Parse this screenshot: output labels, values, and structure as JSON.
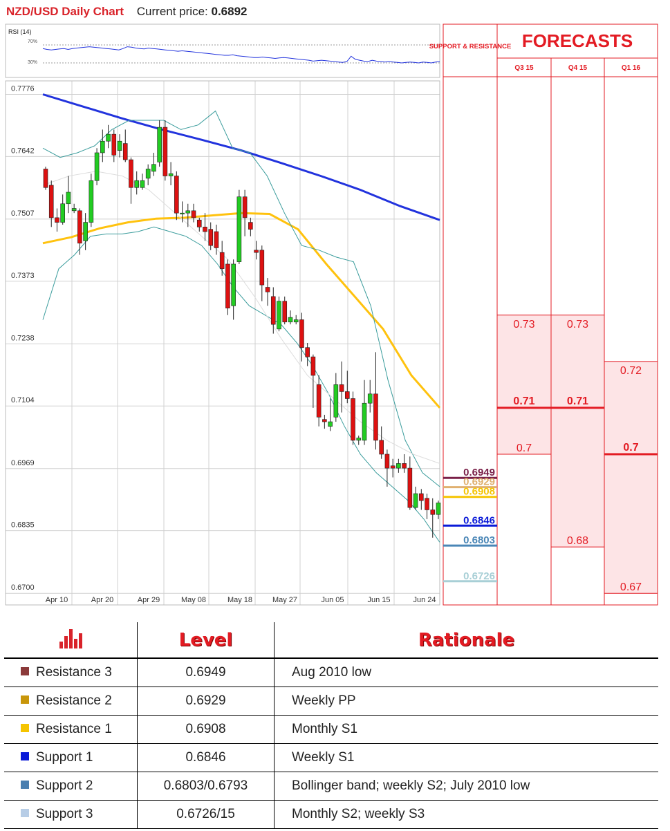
{
  "header": {
    "title": "NZD/USD Daily Chart",
    "current_price_label": "Current price:",
    "current_price": "0.6892"
  },
  "rsi": {
    "label": "RSI (14)",
    "upper_label": "70%",
    "lower_label": "30%",
    "values": [
      62,
      60,
      59,
      60,
      61,
      62,
      60,
      62,
      63,
      64,
      65,
      66,
      65,
      64,
      63,
      62,
      61,
      60,
      59,
      62,
      66,
      65,
      63,
      62,
      61,
      63,
      62,
      61,
      60,
      59,
      58,
      57,
      56,
      57,
      56,
      55,
      54,
      53,
      52,
      51,
      50,
      49,
      48,
      47,
      47,
      48,
      46,
      45,
      44,
      43,
      42,
      42,
      43,
      42,
      41,
      40,
      41,
      42,
      41,
      40,
      39,
      38,
      37,
      36,
      34,
      35,
      36,
      35,
      34,
      33,
      32,
      31,
      33,
      45,
      38,
      36,
      34,
      33,
      36,
      34,
      33,
      32,
      33,
      32,
      31,
      30,
      31,
      32,
      31,
      30,
      32,
      31,
      30,
      32,
      33
    ]
  },
  "chart_data": {
    "type": "candlestick",
    "title": "NZD/USD Daily Chart",
    "ylim": [
      0.6675,
      0.7805
    ],
    "y_ticks": [
      "0.7776",
      "0.7642",
      "0.7507",
      "0.7373",
      "0.7238",
      "0.7104",
      "0.6969",
      "0.6835",
      "0.6700"
    ],
    "x_ticks": [
      "Apr 10",
      "Apr 20",
      "Apr 29",
      "May 08",
      "May 18",
      "May 27",
      "Jun 05",
      "Jun 15",
      "Jun 24"
    ],
    "candles": [
      [
        0.7615,
        0.762,
        0.757,
        0.7575
      ],
      [
        0.758,
        0.759,
        0.749,
        0.751
      ],
      [
        0.751,
        0.753,
        0.748,
        0.75
      ],
      [
        0.75,
        0.756,
        0.7495,
        0.754
      ],
      [
        0.754,
        0.76,
        0.752,
        0.7565
      ],
      [
        0.7525,
        0.754,
        0.752,
        0.753
      ],
      [
        0.7525,
        0.753,
        0.743,
        0.7455
      ],
      [
        0.746,
        0.752,
        0.744,
        0.75
      ],
      [
        0.75,
        0.7605,
        0.749,
        0.759
      ],
      [
        0.759,
        0.766,
        0.758,
        0.765
      ],
      [
        0.765,
        0.77,
        0.763,
        0.7675
      ],
      [
        0.7675,
        0.771,
        0.766,
        0.769
      ],
      [
        0.769,
        0.77,
        0.763,
        0.7645
      ],
      [
        0.7655,
        0.769,
        0.764,
        0.7675
      ],
      [
        0.767,
        0.77,
        0.763,
        0.7635
      ],
      [
        0.7635,
        0.764,
        0.754,
        0.7575
      ],
      [
        0.7575,
        0.761,
        0.756,
        0.759
      ],
      [
        0.7575,
        0.7605,
        0.757,
        0.759
      ],
      [
        0.7595,
        0.7625,
        0.758,
        0.7615
      ],
      [
        0.761,
        0.765,
        0.76,
        0.7625
      ],
      [
        0.763,
        0.772,
        0.762,
        0.7705
      ],
      [
        0.7705,
        0.772,
        0.759,
        0.76
      ],
      [
        0.76,
        0.763,
        0.758,
        0.7605
      ],
      [
        0.76,
        0.761,
        0.7505,
        0.752
      ],
      [
        0.752,
        0.7545,
        0.75,
        0.752
      ],
      [
        0.752,
        0.754,
        0.749,
        0.7525
      ],
      [
        0.7525,
        0.754,
        0.75,
        0.751
      ],
      [
        0.7505,
        0.751,
        0.748,
        0.749
      ],
      [
        0.749,
        0.752,
        0.746,
        0.748
      ],
      [
        0.7485,
        0.75,
        0.744,
        0.745
      ],
      [
        0.748,
        0.7495,
        0.743,
        0.7445
      ],
      [
        0.7435,
        0.746,
        0.7385,
        0.74
      ],
      [
        0.741,
        0.742,
        0.73,
        0.7315
      ],
      [
        0.732,
        0.742,
        0.729,
        0.741
      ],
      [
        0.7415,
        0.757,
        0.741,
        0.7555
      ],
      [
        0.7555,
        0.757,
        0.747,
        0.751
      ],
      [
        0.75,
        0.751,
        0.747,
        0.7485
      ],
      [
        0.744,
        0.746,
        0.742,
        0.7435
      ],
      [
        0.744,
        0.745,
        0.733,
        0.7365
      ],
      [
        0.736,
        0.738,
        0.732,
        0.735
      ],
      [
        0.734,
        0.736,
        0.726,
        0.728
      ],
      [
        0.727,
        0.734,
        0.7265,
        0.733
      ],
      [
        0.733,
        0.734,
        0.728,
        0.7285
      ],
      [
        0.7285,
        0.731,
        0.728,
        0.7295
      ],
      [
        0.7285,
        0.73,
        0.728,
        0.729
      ],
      [
        0.729,
        0.7305,
        0.72,
        0.723
      ],
      [
        0.723,
        0.724,
        0.719,
        0.721
      ],
      [
        0.721,
        0.7215,
        0.71,
        0.717
      ],
      [
        0.715,
        0.717,
        0.706,
        0.708
      ],
      [
        0.7075,
        0.7085,
        0.7055,
        0.707
      ],
      [
        0.706,
        0.712,
        0.705,
        0.707
      ],
      [
        0.708,
        0.7175,
        0.707,
        0.715
      ],
      [
        0.715,
        0.72,
        0.709,
        0.7135
      ],
      [
        0.7135,
        0.718,
        0.711,
        0.712
      ],
      [
        0.712,
        0.7135,
        0.702,
        0.703
      ],
      [
        0.703,
        0.704,
        0.702,
        0.7035
      ],
      [
        0.703,
        0.716,
        0.702,
        0.711
      ],
      [
        0.711,
        0.716,
        0.709,
        0.713
      ],
      [
        0.713,
        0.722,
        0.701,
        0.703
      ],
      [
        0.703,
        0.706,
        0.699,
        0.7
      ],
      [
        0.7,
        0.701,
        0.693,
        0.697
      ],
      [
        0.6975,
        0.699,
        0.695,
        0.697
      ],
      [
        0.697,
        0.699,
        0.696,
        0.698
      ],
      [
        0.698,
        0.7,
        0.696,
        0.697
      ],
      [
        0.697,
        0.6995,
        0.688,
        0.6885
      ],
      [
        0.6885,
        0.693,
        0.688,
        0.6915
      ],
      [
        0.6915,
        0.6925,
        0.688,
        0.69
      ],
      [
        0.6905,
        0.6915,
        0.686,
        0.688
      ],
      [
        0.688,
        0.6905,
        0.682,
        0.687
      ],
      [
        0.687,
        0.69,
        0.686,
        0.6895
      ]
    ],
    "series": [
      {
        "name": "",
        "color": "#2233dd",
        "values": [
          0.7776,
          0.775,
          0.7724,
          0.77,
          0.7678,
          0.7655,
          0.7628,
          0.76,
          0.757,
          0.7535,
          0.7505
        ]
      },
      {
        "name": "",
        "color": "#ffc20e",
        "values": [
          0.7455,
          0.7468,
          0.7487,
          0.75,
          0.7508,
          0.751,
          0.7515,
          0.752,
          0.7518,
          0.7485,
          0.741,
          0.734,
          0.727,
          0.717,
          0.71
        ]
      },
      {
        "name": "",
        "color": "#3a9c9c",
        "values": [
          0.729,
          0.74,
          0.743,
          0.747,
          0.7475,
          0.7475,
          0.748,
          0.749,
          0.748,
          0.747,
          0.745,
          0.741,
          0.736,
          0.732,
          0.73,
          0.728,
          0.724,
          0.719,
          0.713,
          0.706,
          0.7,
          0.696,
          0.693,
          0.69,
          0.686,
          0.681
        ]
      },
      {
        "name": "",
        "color": "#3a9c9c",
        "values": [
          0.766,
          0.764,
          0.765,
          0.7665,
          0.77,
          0.772,
          0.772,
          0.772,
          0.77,
          0.771,
          0.774,
          0.766,
          0.765,
          0.76,
          0.752,
          0.745,
          0.744,
          0.7425,
          0.7415,
          0.732,
          0.716,
          0.703,
          0.696,
          0.693
        ]
      },
      {
        "name": "",
        "color": "#dddddd",
        "values": [
          0.758,
          0.76,
          0.761,
          0.76,
          0.757,
          0.752,
          0.747,
          0.742,
          0.734,
          0.725,
          0.717,
          0.712,
          0.707,
          0.703,
          0.7,
          0.698
        ]
      }
    ],
    "levels": [
      {
        "label": "0.6949",
        "value": 0.6949,
        "color": "#7a2048"
      },
      {
        "label": "0.6929",
        "value": 0.6929,
        "color": "#e0b070"
      },
      {
        "label": "0.6908",
        "value": 0.6908,
        "color": "#f5c400"
      },
      {
        "label": "0.6846",
        "value": 0.6846,
        "color": "#0a1ad8"
      },
      {
        "label": "0.6803",
        "value": 0.6803,
        "color": "#4a86b6"
      },
      {
        "label": "0.6726",
        "value": 0.6726,
        "color": "#a8cfd6"
      }
    ]
  },
  "forecasts": {
    "sr_header": "SUPPORT & RESISTANCE",
    "title": "FORECASTS",
    "columns": [
      {
        "label": "Q3 15",
        "high": 0.73,
        "low": 0.7,
        "median": 0.71,
        "high_label": "0.73",
        "median_label": "0.71",
        "low_label": "0.7"
      },
      {
        "label": "Q4 15",
        "high": 0.73,
        "low": 0.68,
        "median": 0.71,
        "high_label": "0.73",
        "median_label": "0.71",
        "low_label": "0.68"
      },
      {
        "label": "Q1 16",
        "high": 0.72,
        "low": 0.67,
        "median": 0.7,
        "high_label": "0.72",
        "median_label": "0.7",
        "low_label": "0.67"
      }
    ]
  },
  "table": {
    "col_level": "Level",
    "col_rationale": "Rationale",
    "rows": [
      {
        "name": "Resistance 3",
        "level": "0.6949",
        "rationale": "Aug 2010 low",
        "color": "#8b3a3a"
      },
      {
        "name": "Resistance 2",
        "level": "0.6929",
        "rationale": "Weekly PP",
        "color": "#c8960a"
      },
      {
        "name": "Resistance 1",
        "level": "0.6908",
        "rationale": "Monthly S1",
        "color": "#f5c400"
      },
      {
        "name": "Support 1",
        "level": "0.6846",
        "rationale": "Weekly S1",
        "color": "#0a1ad8"
      },
      {
        "name": "Support 2",
        "level": "0.6803/0.6793",
        "rationale": "Bollinger band; weekly S2; July 2010 low",
        "color": "#4a7fb0"
      },
      {
        "name": "Support 3",
        "level": "0.6726/15",
        "rationale": "Monthly S2; weekly S3",
        "color": "#b7cde6"
      }
    ]
  }
}
